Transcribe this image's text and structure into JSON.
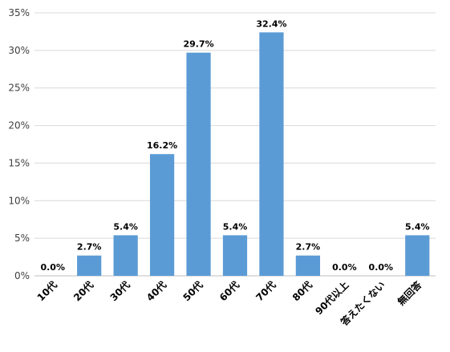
{
  "chart_data": {
    "type": "bar",
    "categories": [
      "10代",
      "20代",
      "30代",
      "40代",
      "50代",
      "60代",
      "70代",
      "80代",
      "90代以上",
      "答えたくない",
      "無回答"
    ],
    "values": [
      0.0,
      2.7,
      5.4,
      16.2,
      29.7,
      5.4,
      32.4,
      2.7,
      0.0,
      0.0,
      5.4
    ],
    "data_labels": [
      "0.0%",
      "2.7%",
      "5.4%",
      "16.2%",
      "29.7%",
      "5.4%",
      "32.4%",
      "2.7%",
      "0.0%",
      "0.0%",
      "5.4%"
    ],
    "ylim": [
      0,
      35
    ],
    "yticks": [
      0,
      5,
      10,
      15,
      20,
      25,
      30,
      35
    ],
    "ytick_labels": [
      "0%",
      "5%",
      "10%",
      "15%",
      "20%",
      "25%",
      "30%",
      "35%"
    ],
    "grid": true,
    "legend": "none",
    "bar_color": "#5b9bd5",
    "grid_color": "#d9d9d9",
    "title": "",
    "xlabel": "",
    "ylabel": ""
  }
}
